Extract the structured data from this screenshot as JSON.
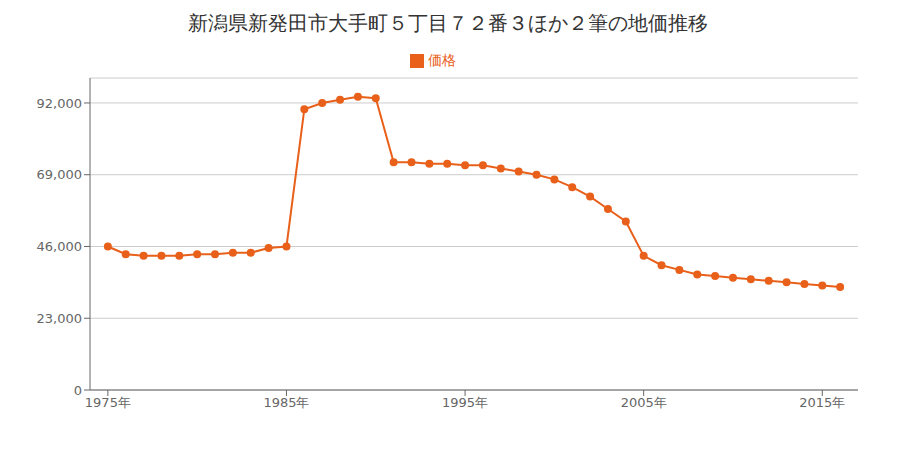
{
  "chart_data": {
    "type": "line",
    "title": "新潟県新発田市大手町５丁目７２番３ほか２筆の地価推移",
    "x": [
      1975,
      1976,
      1977,
      1978,
      1979,
      1980,
      1981,
      1982,
      1983,
      1984,
      1985,
      1986,
      1987,
      1988,
      1989,
      1990,
      1991,
      1992,
      1993,
      1994,
      1995,
      1996,
      1997,
      1998,
      1999,
      2000,
      2001,
      2002,
      2003,
      2004,
      2005,
      2006,
      2007,
      2008,
      2009,
      2010,
      2011,
      2012,
      2013,
      2014,
      2015,
      2016
    ],
    "series": [
      {
        "name": "価格",
        "color": "#e8601a",
        "marker": "circle",
        "line_style": "solid",
        "values": [
          46000,
          43500,
          43000,
          43000,
          43000,
          43500,
          43500,
          44000,
          44000,
          45500,
          46000,
          90000,
          92000,
          93000,
          94000,
          93500,
          73000,
          73000,
          72500,
          72500,
          72000,
          72000,
          71000,
          70000,
          69000,
          67500,
          65000,
          62000,
          58000,
          54000,
          43000,
          40000,
          38500,
          37000,
          36500,
          36000,
          35500,
          35000,
          34500,
          34000,
          33500,
          33000
        ]
      }
    ],
    "xlim": [
      1974,
      2017
    ],
    "xticks": [
      {
        "value": 1975,
        "label": "1975年"
      },
      {
        "value": 1985,
        "label": "1985年"
      },
      {
        "value": 1995,
        "label": "1995年"
      },
      {
        "value": 2005,
        "label": "2005年"
      },
      {
        "value": 2015,
        "label": "2015年"
      }
    ],
    "ylim": [
      0,
      100000
    ],
    "yticks": [
      0,
      {
        "value": 23000,
        "label": "23,000"
      },
      {
        "value": 46000,
        "label": "46,000"
      },
      {
        "value": 69000,
        "label": "69,000"
      },
      {
        "value": 92000,
        "label": "92,000"
      }
    ],
    "grid": "y",
    "legend": "top"
  }
}
